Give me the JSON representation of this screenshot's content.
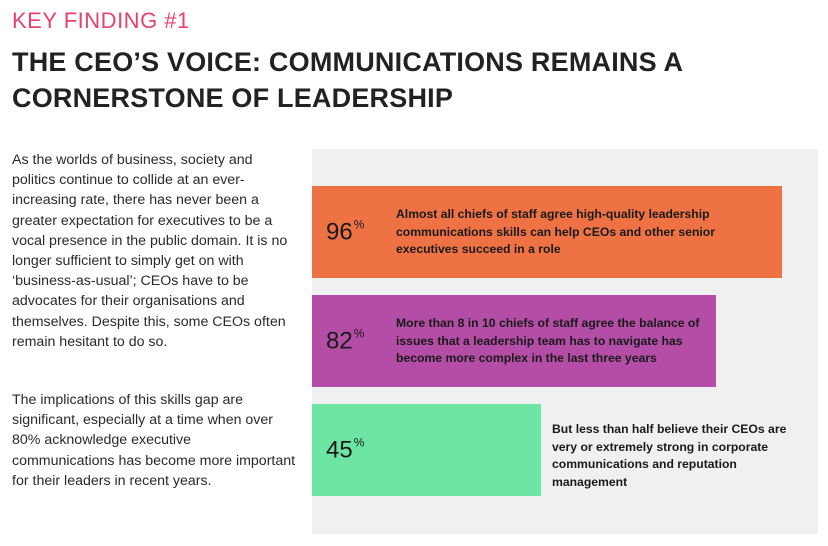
{
  "kicker": "KEY FINDING #1",
  "headline": "THE CEO’S VOICE: COMMUNICATIONS REMAINS A CORNERSTONE OF LEADERSHIP",
  "paragraphs": [
    "As the worlds of business, society and politics continue to collide at an ever-increasing rate, there has never been a greater expectation for executives to be a vocal presence in the public domain. It is no longer sufficient to simply get on with ‘business-as-usual’; CEOs have to be advocates for their organisations and themselves. Despite this, some CEOs often remain hesitant to do so.",
    "The implications of this skills gap are significant, especially at a time when over 80% acknowledge executive communications has become more important for their leaders in recent years."
  ],
  "findings": [
    {
      "value": "96",
      "unit": "%",
      "text": "Almost all chiefs of staff agree high-quality leadership communications skills can help CEOs and other senior executives succeed in a role",
      "color": "#ef7245"
    },
    {
      "value": "82",
      "unit": "%",
      "text": "More than 8 in 10 chiefs of staff agree the balance of issues that a leadership team has to navigate has become more complex in the last three years",
      "color": "#b44da5"
    },
    {
      "value": "45",
      "unit": "%",
      "text": "But less than half believe their CEOs are very or extremely strong in corporate communications and reputation management",
      "color": "#6ee6a3"
    }
  ]
}
